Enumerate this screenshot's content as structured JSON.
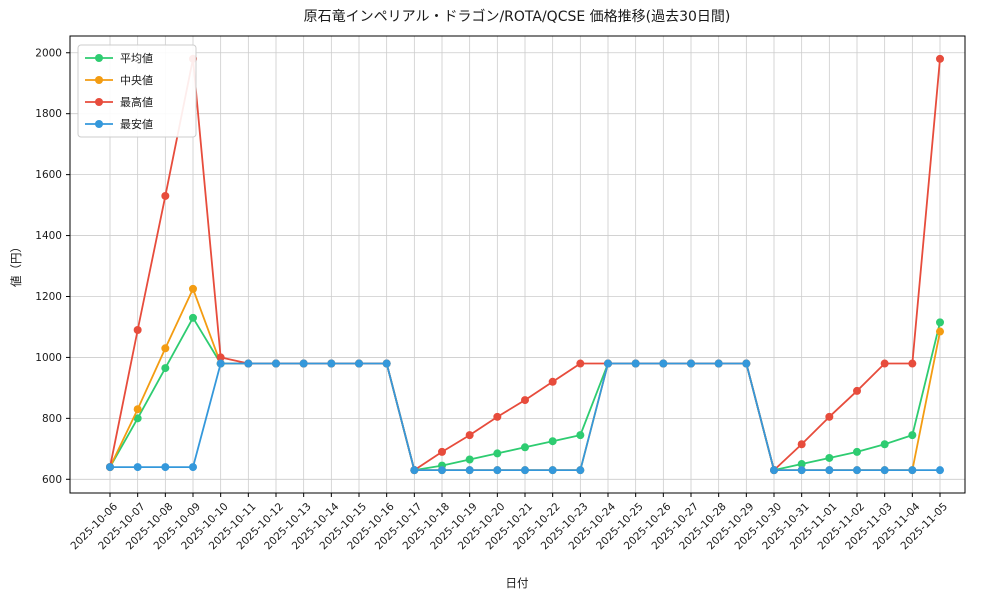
{
  "figure": {
    "background": "#ffffff",
    "plot_background": "#ffffff",
    "grid_color": "#cccccc",
    "spine_color": "#000000"
  },
  "chart_data": {
    "type": "line",
    "title": "原石竜インペリアル・ドラゴン/ROTA/QCSE 価格推移(過去30日間)",
    "xlabel": "日付",
    "ylabel": "値（円）",
    "grid": true,
    "legend_position": "upper left",
    "marker": "circle",
    "ylim": [
      555,
      2055
    ],
    "yticks": [
      600,
      800,
      1000,
      1200,
      1400,
      1600,
      1800,
      2000
    ],
    "x": [
      "2025-10-06",
      "2025-10-07",
      "2025-10-08",
      "2025-10-09",
      "2025-10-10",
      "2025-10-11",
      "2025-10-12",
      "2025-10-13",
      "2025-10-14",
      "2025-10-15",
      "2025-10-16",
      "2025-10-17",
      "2025-10-18",
      "2025-10-19",
      "2025-10-20",
      "2025-10-21",
      "2025-10-22",
      "2025-10-23",
      "2025-10-24",
      "2025-10-25",
      "2025-10-26",
      "2025-10-27",
      "2025-10-28",
      "2025-10-29",
      "2025-10-30",
      "2025-10-31",
      "2025-11-01",
      "2025-11-02",
      "2025-11-03",
      "2025-11-04",
      "2025-11-05"
    ],
    "series": [
      {
        "name": "平均値",
        "color": "#2ecc71",
        "values": [
          640,
          800,
          965,
          1130,
          980,
          980,
          980,
          980,
          980,
          980,
          980,
          630,
          645,
          665,
          685,
          705,
          725,
          745,
          980,
          980,
          980,
          980,
          980,
          980,
          630,
          650,
          670,
          690,
          715,
          745,
          1115
        ]
      },
      {
        "name": "中央値",
        "color": "#f39c12",
        "values": [
          640,
          830,
          1030,
          1225,
          980,
          980,
          980,
          980,
          980,
          980,
          980,
          630,
          630,
          630,
          630,
          630,
          630,
          630,
          980,
          980,
          980,
          980,
          980,
          980,
          630,
          630,
          630,
          630,
          630,
          630,
          1085
        ]
      },
      {
        "name": "最高値",
        "color": "#e74c3c",
        "values": [
          640,
          1090,
          1530,
          1980,
          1000,
          980,
          980,
          980,
          980,
          980,
          980,
          630,
          690,
          745,
          805,
          860,
          920,
          980,
          980,
          980,
          980,
          980,
          980,
          980,
          630,
          715,
          805,
          890,
          980,
          980,
          1980
        ]
      },
      {
        "name": "最安値",
        "color": "#3498db",
        "values": [
          640,
          640,
          640,
          640,
          980,
          980,
          980,
          980,
          980,
          980,
          980,
          630,
          630,
          630,
          630,
          630,
          630,
          630,
          980,
          980,
          980,
          980,
          980,
          980,
          630,
          630,
          630,
          630,
          630,
          630,
          630
        ]
      }
    ]
  }
}
